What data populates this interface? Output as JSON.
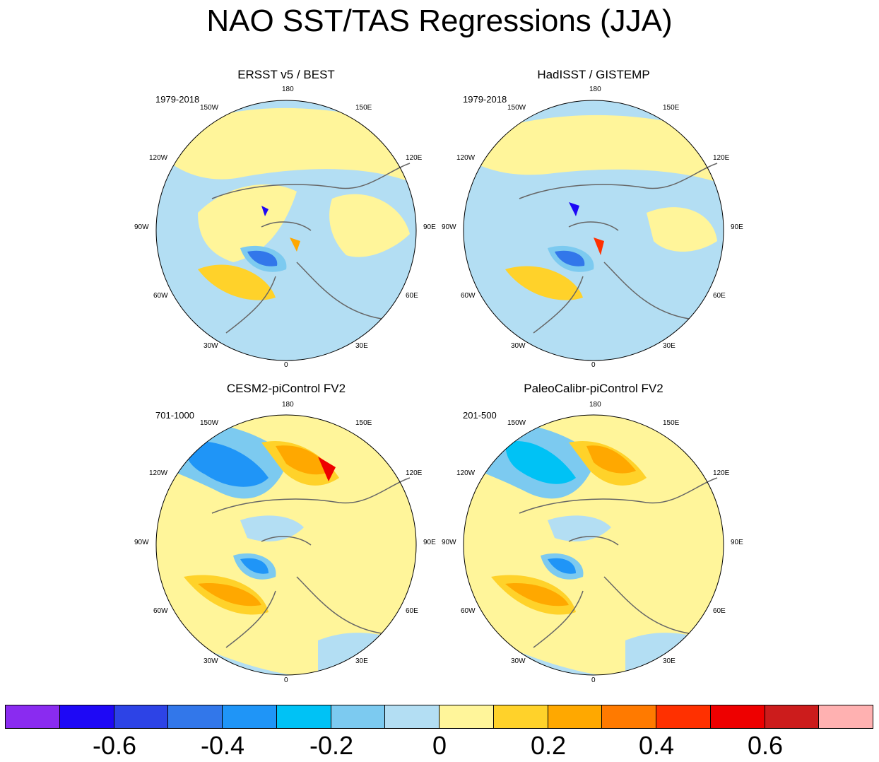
{
  "figure": {
    "title": "NAO SST/TAS Regressions (JJA)"
  },
  "panels": [
    {
      "title": "ERSST v5 / BEST",
      "period": "1979-2018"
    },
    {
      "title": "HadISST / GISTEMP",
      "period": "1979-2018"
    },
    {
      "title": "CESM2-piControl FV2",
      "period": "701-1000"
    },
    {
      "title": "PaleoCalibr-piControl FV2",
      "period": "201-500"
    }
  ],
  "longitude_labels": {
    "top": "180",
    "bottom": "0",
    "upper_left": "150W",
    "upper_right": "150E",
    "mid_upper_left": "120W",
    "mid_upper_right": "120E",
    "left": "90W",
    "right": "90E",
    "mid_lower_left": "60W",
    "mid_lower_right": "60E",
    "lower_left": "30W",
    "lower_right": "30E"
  },
  "colorbar": {
    "colors": [
      "#8a2bf0",
      "#1e08f5",
      "#2d43e6",
      "#3277ea",
      "#1f95f7",
      "#00c2f5",
      "#7ccaf0",
      "#b3def3",
      "#fff59a",
      "#ffd22a",
      "#ffa800",
      "#ff7a00",
      "#ff3000",
      "#ee0000",
      "#cc1c1c",
      "#ffb1b1"
    ],
    "tick_labels": [
      "-0.6",
      "-0.4",
      "-0.2",
      "0",
      "0.2",
      "0.4",
      "0.6"
    ],
    "tick_values": [
      -0.6,
      -0.4,
      -0.2,
      0,
      0.2,
      0.4,
      0.6
    ],
    "min": -0.8,
    "max": 0.8,
    "interval": 0.1
  }
}
